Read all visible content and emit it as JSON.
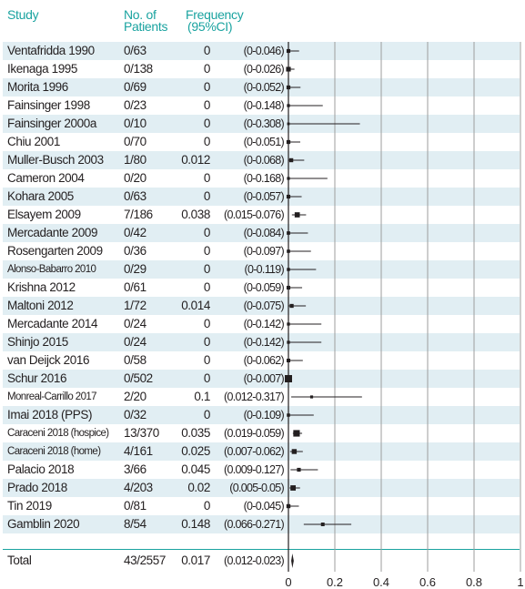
{
  "header": {
    "study": "Study",
    "patients_line1": "No. of",
    "patients_line2": "Patients",
    "frequency_line1": "Frequency",
    "frequency_line2": "(95%CI)"
  },
  "rows": [
    {
      "study": "Ventafridda 1990",
      "patients": "0/63",
      "freq": "0",
      "ci": "(0-0.046)"
    },
    {
      "study": "Ikenaga 1995",
      "patients": "0/138",
      "freq": "0",
      "ci": "(0-0.026)"
    },
    {
      "study": "Morita 1996",
      "patients": "0/69",
      "freq": "0",
      "ci": "(0-0.052)"
    },
    {
      "study": "Fainsinger 1998",
      "patients": "0/23",
      "freq": "0",
      "ci": "(0-0.148)"
    },
    {
      "study": "Fainsinger 2000a",
      "patients": "0/10",
      "freq": "0",
      "ci": "(0-0.308)"
    },
    {
      "study": "Chiu 2001",
      "patients": "0/70",
      "freq": "0",
      "ci": "(0-0.051)"
    },
    {
      "study": "Muller-Busch 2003",
      "patients": "1/80",
      "freq": "0.012",
      "ci": "(0-0.068)"
    },
    {
      "study": "Cameron 2004",
      "patients": "0/20",
      "freq": "0",
      "ci": "(0-0.168)"
    },
    {
      "study": "Kohara 2005",
      "patients": "0/63",
      "freq": "0",
      "ci": "(0-0.057)"
    },
    {
      "study": "Elsayem 2009",
      "patients": "7/186",
      "freq": "0.038",
      "ci": "(0.015-0.076)"
    },
    {
      "study": "Mercadante 2009",
      "patients": "0/42",
      "freq": "0",
      "ci": "(0-0.084)"
    },
    {
      "study": "Rosengarten 2009",
      "patients": "0/36",
      "freq": "0",
      "ci": "(0-0.097)"
    },
    {
      "study": "Alonso-Babarro 2010",
      "patients": "0/29",
      "freq": "0",
      "ci": "(0-0.119)",
      "small": true
    },
    {
      "study": "Krishna 2012",
      "patients": "0/61",
      "freq": "0",
      "ci": "(0-0.059)"
    },
    {
      "study": "Maltoni 2012",
      "patients": "1/72",
      "freq": "0.014",
      "ci": "(0-0.075)"
    },
    {
      "study": "Mercadante 2014",
      "patients": "0/24",
      "freq": "0",
      "ci": "(0-0.142)"
    },
    {
      "study": "Shinjo 2015",
      "patients": "0/24",
      "freq": "0",
      "ci": "(0-0.142)"
    },
    {
      "study": "van Deijck 2016",
      "patients": "0/58",
      "freq": "0",
      "ci": "(0-0.062)"
    },
    {
      "study": "Schur 2016",
      "patients": "0/502",
      "freq": "0",
      "ci": "(0-0.007)"
    },
    {
      "study": "Monreal-Carrillo 2017",
      "patients": "2/20",
      "freq": "0.1",
      "ci": "(0.012-0.317)",
      "small": true
    },
    {
      "study": "Imai 2018 (PPS)",
      "patients": "0/32",
      "freq": "0",
      "ci": "(0-0.109)"
    },
    {
      "study": "Caraceni 2018 (hospice)",
      "patients": "13/370",
      "freq": "0.035",
      "ci": "(0.019-0.059)",
      "small": true
    },
    {
      "study": "Caraceni 2018 (home)",
      "patients": "4/161",
      "freq": "0.025",
      "ci": "(0.007-0.062)",
      "small": true
    },
    {
      "study": "Palacio 2018",
      "patients": "3/66",
      "freq": "0.045",
      "ci": "(0.009-0.127)"
    },
    {
      "study": "Prado 2018",
      "patients": "4/203",
      "freq": "0.02",
      "ci": "(0.005-0.05)"
    },
    {
      "study": "Tin 2019",
      "patients": "0/81",
      "freq": "0",
      "ci": "(0-0.045)"
    },
    {
      "study": "Gamblin 2020",
      "patients": "8/54",
      "freq": "0.148",
      "ci": "(0.066-0.271)"
    }
  ],
  "total": {
    "study": "Total",
    "patients": "43/2557",
    "freq": "0.017",
    "ci": "(0.012-0.023)"
  },
  "colors": {
    "header": "#1aa3a0",
    "stripe": "#e1eef3",
    "grid": "#9d9d9d",
    "mark": "#231f20"
  },
  "chart_data": {
    "type": "forest",
    "xlim": [
      0,
      1
    ],
    "xticks": [
      "0",
      "0.2",
      "0.4",
      "0.6",
      "0.8",
      "1"
    ],
    "grid": true,
    "studies": [
      {
        "name": "Ventafridda 1990",
        "n": 63,
        "est": 0,
        "lo": 0,
        "hi": 0.046
      },
      {
        "name": "Ikenaga 1995",
        "n": 138,
        "est": 0,
        "lo": 0,
        "hi": 0.026
      },
      {
        "name": "Morita 1996",
        "n": 69,
        "est": 0,
        "lo": 0,
        "hi": 0.052
      },
      {
        "name": "Fainsinger 1998",
        "n": 23,
        "est": 0,
        "lo": 0,
        "hi": 0.148
      },
      {
        "name": "Fainsinger 2000a",
        "n": 10,
        "est": 0,
        "lo": 0,
        "hi": 0.308
      },
      {
        "name": "Chiu 2001",
        "n": 70,
        "est": 0,
        "lo": 0,
        "hi": 0.051
      },
      {
        "name": "Muller-Busch 2003",
        "n": 80,
        "est": 0.012,
        "lo": 0,
        "hi": 0.068
      },
      {
        "name": "Cameron 2004",
        "n": 20,
        "est": 0,
        "lo": 0,
        "hi": 0.168
      },
      {
        "name": "Kohara 2005",
        "n": 63,
        "est": 0,
        "lo": 0,
        "hi": 0.057
      },
      {
        "name": "Elsayem 2009",
        "n": 186,
        "est": 0.038,
        "lo": 0.015,
        "hi": 0.076
      },
      {
        "name": "Mercadante 2009",
        "n": 42,
        "est": 0,
        "lo": 0,
        "hi": 0.084
      },
      {
        "name": "Rosengarten 2009",
        "n": 36,
        "est": 0,
        "lo": 0,
        "hi": 0.097
      },
      {
        "name": "Alonso-Babarro 2010",
        "n": 29,
        "est": 0,
        "lo": 0,
        "hi": 0.119
      },
      {
        "name": "Krishna 2012",
        "n": 61,
        "est": 0,
        "lo": 0,
        "hi": 0.059
      },
      {
        "name": "Maltoni 2012",
        "n": 72,
        "est": 0.014,
        "lo": 0,
        "hi": 0.075
      },
      {
        "name": "Mercadante 2014",
        "n": 24,
        "est": 0,
        "lo": 0,
        "hi": 0.142
      },
      {
        "name": "Shinjo 2015",
        "n": 24,
        "est": 0,
        "lo": 0,
        "hi": 0.142
      },
      {
        "name": "van Deijck 2016",
        "n": 58,
        "est": 0,
        "lo": 0,
        "hi": 0.062
      },
      {
        "name": "Schur 2016",
        "n": 502,
        "est": 0,
        "lo": 0,
        "hi": 0.007
      },
      {
        "name": "Monreal-Carrillo 2017",
        "n": 20,
        "est": 0.1,
        "lo": 0.012,
        "hi": 0.317
      },
      {
        "name": "Imai 2018 (PPS)",
        "n": 32,
        "est": 0,
        "lo": 0,
        "hi": 0.109
      },
      {
        "name": "Caraceni 2018 (hospice)",
        "n": 370,
        "est": 0.035,
        "lo": 0.019,
        "hi": 0.059
      },
      {
        "name": "Caraceni 2018 (home)",
        "n": 161,
        "est": 0.025,
        "lo": 0.007,
        "hi": 0.062
      },
      {
        "name": "Palacio 2018",
        "n": 66,
        "est": 0.045,
        "lo": 0.009,
        "hi": 0.127
      },
      {
        "name": "Prado 2018",
        "n": 203,
        "est": 0.02,
        "lo": 0.005,
        "hi": 0.05
      },
      {
        "name": "Tin 2019",
        "n": 81,
        "est": 0,
        "lo": 0,
        "hi": 0.045
      },
      {
        "name": "Gamblin 2020",
        "n": 54,
        "est": 0.148,
        "lo": 0.066,
        "hi": 0.271
      }
    ],
    "pooled": {
      "name": "Total",
      "n": 2557,
      "est": 0.017,
      "lo": 0.012,
      "hi": 0.023
    }
  }
}
